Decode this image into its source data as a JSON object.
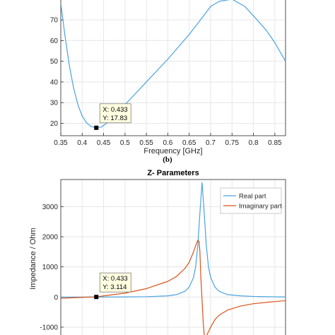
{
  "caption": "(b)",
  "colors": {
    "blue": "#4aa3df",
    "orange": "#d95319",
    "grid": "#e6e6e6",
    "axis": "#262626",
    "tip_bg": "#ffffe1"
  },
  "chart_data": [
    {
      "type": "line",
      "title": "",
      "xlabel": "Frequency [GHz]",
      "ylabel": "",
      "xlim": [
        0.35,
        0.875
      ],
      "ylim": [
        14,
        81
      ],
      "xticks": [
        0.35,
        0.4,
        0.45,
        0.5,
        0.55,
        0.6,
        0.65,
        0.7,
        0.75,
        0.8,
        0.85
      ],
      "xtick_labels": [
        "0.35",
        "0.4",
        "0.45",
        "0.5",
        "0.55",
        "0.6",
        "0.65",
        "0.7",
        "0.75",
        "0.8",
        "0.85"
      ],
      "yticks": [
        20,
        30,
        40,
        50,
        60,
        70
      ],
      "ytick_labels": [
        "20",
        "30",
        "40",
        "50",
        "60",
        "70"
      ],
      "grid": true,
      "series": [
        {
          "color": "#4aa3df",
          "x": [
            0.35,
            0.36,
            0.37,
            0.38,
            0.39,
            0.4,
            0.41,
            0.42,
            0.433,
            0.445,
            0.46,
            0.5,
            0.55,
            0.6,
            0.65,
            0.68,
            0.7,
            0.72,
            0.75,
            0.78,
            0.8,
            0.83,
            0.85,
            0.875
          ],
          "y": [
            78,
            62,
            48,
            37,
            29,
            23.5,
            20.3,
            18.5,
            17.83,
            18.2,
            20.5,
            29,
            40,
            51,
            63,
            71,
            76.5,
            79,
            80,
            76.5,
            72,
            65,
            59,
            50
          ]
        }
      ],
      "datatip": {
        "x": 0.433,
        "y": 17.83,
        "label_x": "X: 0.433",
        "label_y": "Y: 17.83"
      }
    },
    {
      "type": "line",
      "title": "Z- Parameters",
      "xlabel": "",
      "ylabel": "Impedance / Ohm",
      "xlim": [
        0.35,
        0.875
      ],
      "ylim": [
        -1400,
        3900
      ],
      "yticks": [
        -1000,
        0,
        1000,
        2000,
        3000
      ],
      "ytick_labels": [
        "-1000",
        "0",
        "1000",
        "2000",
        "3000"
      ],
      "grid": true,
      "legend": "top-right",
      "series": [
        {
          "name": "Real part",
          "color": "#4aa3df",
          "x": [
            0.35,
            0.4,
            0.45,
            0.5,
            0.55,
            0.6,
            0.62,
            0.64,
            0.65,
            0.66,
            0.665,
            0.67,
            0.675,
            0.68,
            0.685,
            0.69,
            0.695,
            0.7,
            0.71,
            0.72,
            0.74,
            0.77,
            0.8,
            0.85,
            0.875
          ],
          "y": [
            0,
            0,
            2,
            5,
            12,
            40,
            80,
            190,
            330,
            650,
            1000,
            1700,
            2800,
            3800,
            2800,
            1700,
            1000,
            650,
            330,
            190,
            80,
            40,
            20,
            8,
            5
          ]
        },
        {
          "name": "Imaginary part",
          "color": "#d95319",
          "x": [
            0.35,
            0.4,
            0.433,
            0.45,
            0.5,
            0.55,
            0.6,
            0.62,
            0.64,
            0.65,
            0.66,
            0.665,
            0.67,
            0.673,
            0.675,
            0.677,
            0.68,
            0.683,
            0.686,
            0.69,
            0.7,
            0.71,
            0.72,
            0.74,
            0.77,
            0.8,
            0.85,
            0.875
          ],
          "y": [
            -40,
            -10,
            3.114,
            40,
            130,
            280,
            520,
            680,
            950,
            1150,
            1500,
            1700,
            1880,
            1850,
            1500,
            700,
            -100,
            -900,
            -1400,
            -1300,
            -1000,
            -750,
            -600,
            -430,
            -300,
            -220,
            -150,
            -120
          ]
        }
      ],
      "datatip": {
        "x": 0.433,
        "y": 3.114,
        "label_x": "X: 0.433",
        "label_y": "Y: 3.114"
      }
    }
  ]
}
